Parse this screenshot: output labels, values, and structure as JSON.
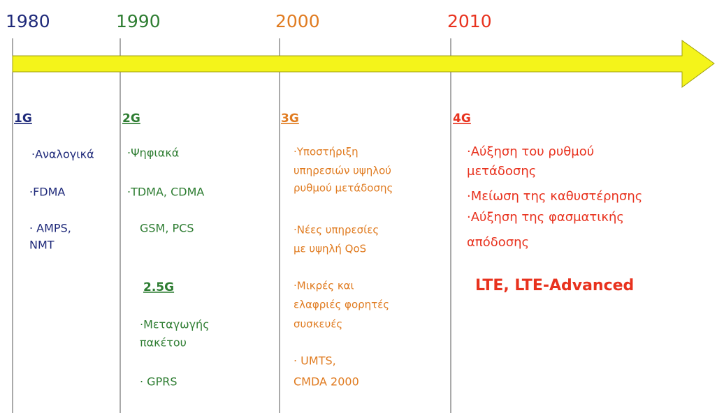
{
  "timeline": {
    "columns": [
      {
        "year": "1980",
        "generation": "1G",
        "lines": [
          "·Αναλογικά",
          "·FDMA",
          "· AMPS,",
          "NMT"
        ]
      },
      {
        "year": "1990",
        "generation": "2G",
        "lines": [
          "·Ψηφιακά",
          "·TDMA, CDMA",
          "GSM, PCS",
          "2.5G",
          "·Μεταγωγής",
          "πακέτου",
          "· GPRS"
        ]
      },
      {
        "year": "2000",
        "generation": "3G",
        "lines": [
          "·Υποστήριξη",
          "υπηρεσιών υψηλού",
          "ρυθμού μετάδοσης",
          "·Νέες υπηρεσίες",
          "με υψηλή QoS",
          "·Μικρές και",
          "ελαφριές φορητές",
          "συσκευές",
          "· UMTS,",
          "CMDA 2000"
        ]
      },
      {
        "year": "2010",
        "generation": "4G",
        "lines": [
          "·Αύξηση του ρυθμού",
          "μετάδοσης",
          "·Μείωση της καθυστέρησης",
          "·Αύξηση της φασματικής",
          "απόδοσης",
          "LTE, LTE-Advanced"
        ]
      }
    ]
  }
}
